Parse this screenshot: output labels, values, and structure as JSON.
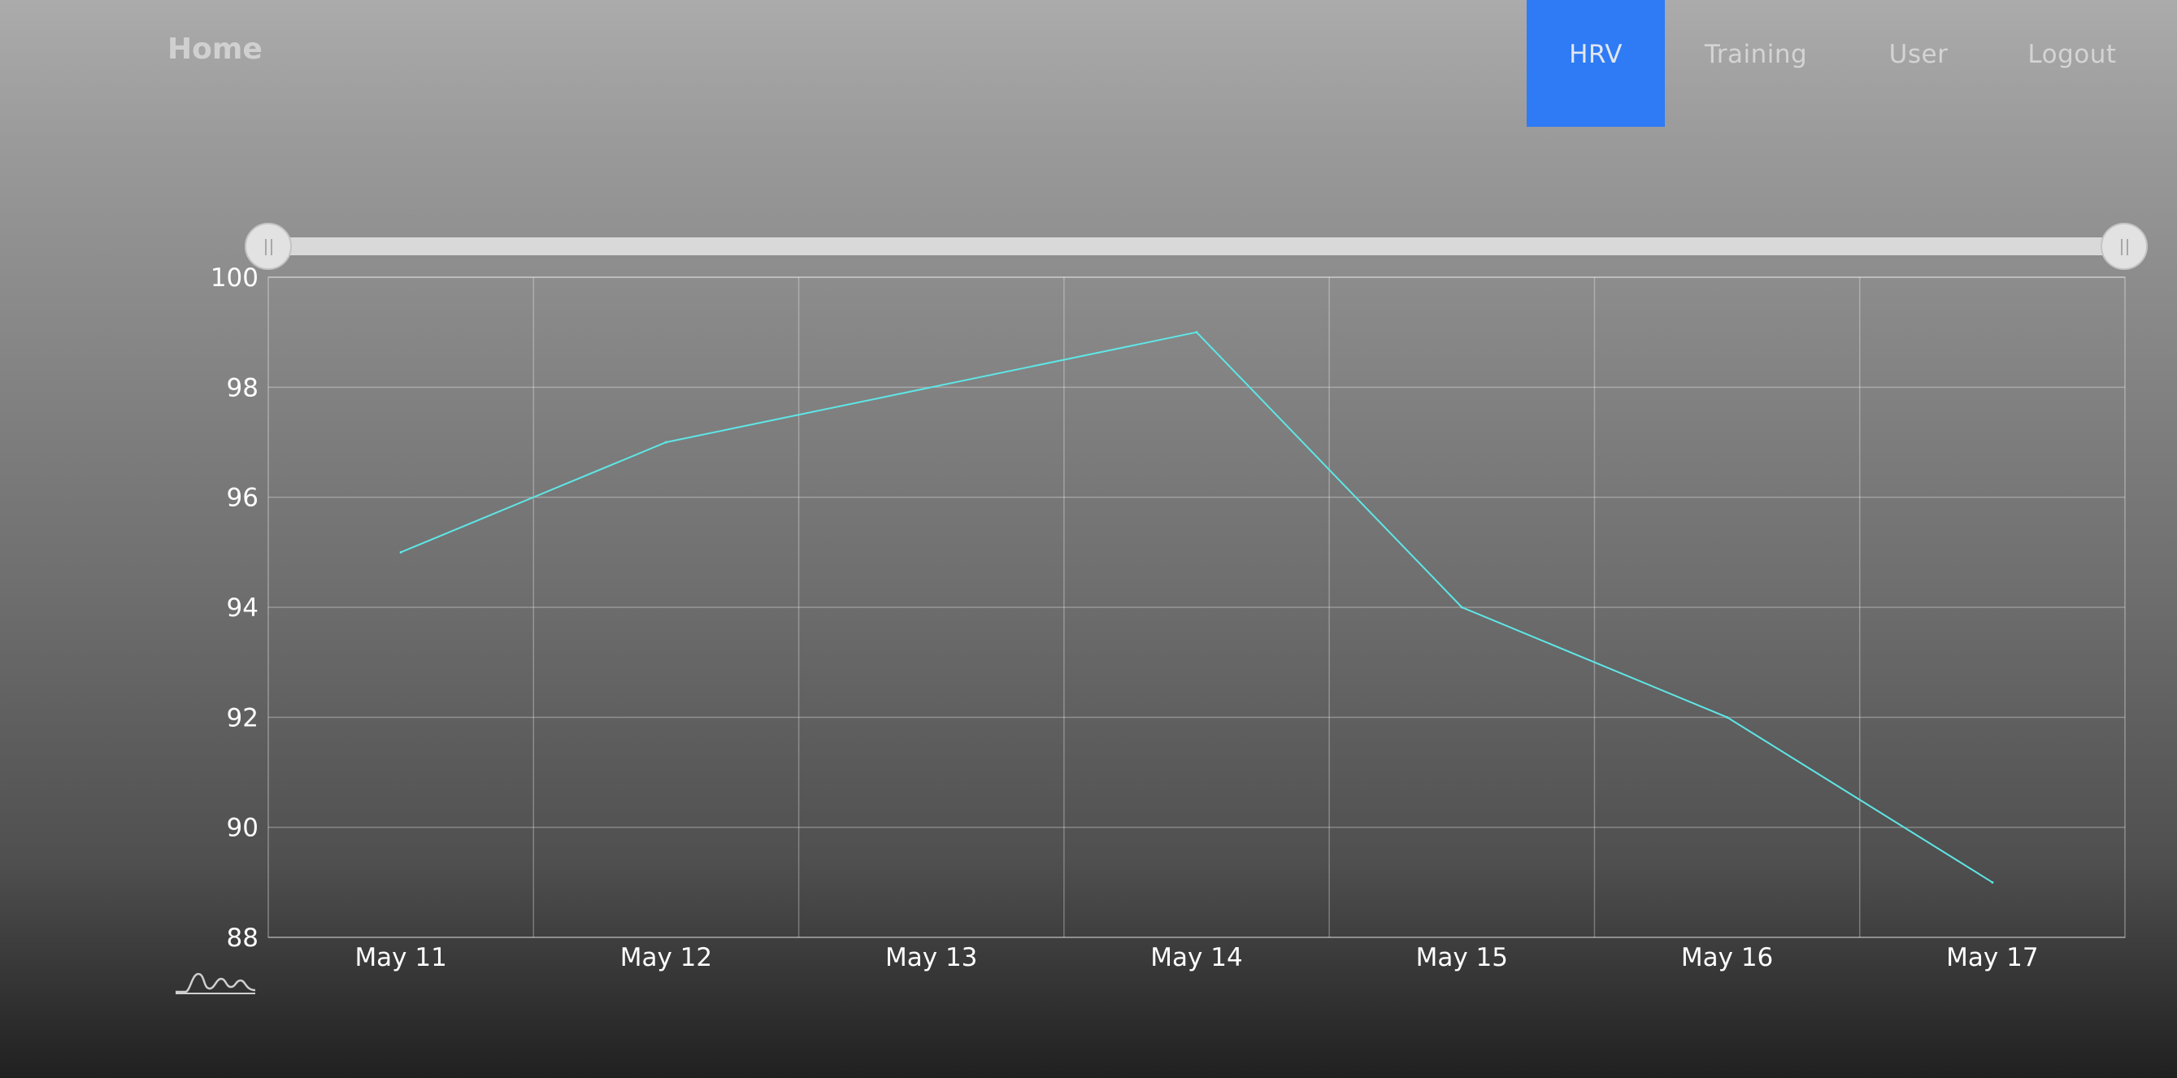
{
  "nav": {
    "brand": "Home",
    "items": [
      {
        "label": "HRV",
        "active": true
      },
      {
        "label": "Training",
        "active": false
      },
      {
        "label": "User",
        "active": false
      },
      {
        "label": "Logout",
        "active": false
      }
    ],
    "active_color": "#2f7bf5"
  },
  "chart_data": {
    "type": "line",
    "x": [
      "May 11",
      "May 12",
      "May 13",
      "May 14",
      "May 15",
      "May 16",
      "May 17"
    ],
    "series": [
      {
        "values": [
          95,
          97,
          null,
          99,
          94,
          92,
          89
        ],
        "color": "#5fe6e6"
      }
    ],
    "yticks": [
      100,
      98,
      96,
      94,
      92,
      90,
      88
    ],
    "ylim": [
      88,
      100
    ],
    "grid": true,
    "title": "",
    "xlabel": "",
    "ylabel": ""
  },
  "range_slider": {
    "start_fraction": 0,
    "end_fraction": 1
  },
  "icons": {
    "logo": "heartbeat-wave-logo-icon"
  }
}
